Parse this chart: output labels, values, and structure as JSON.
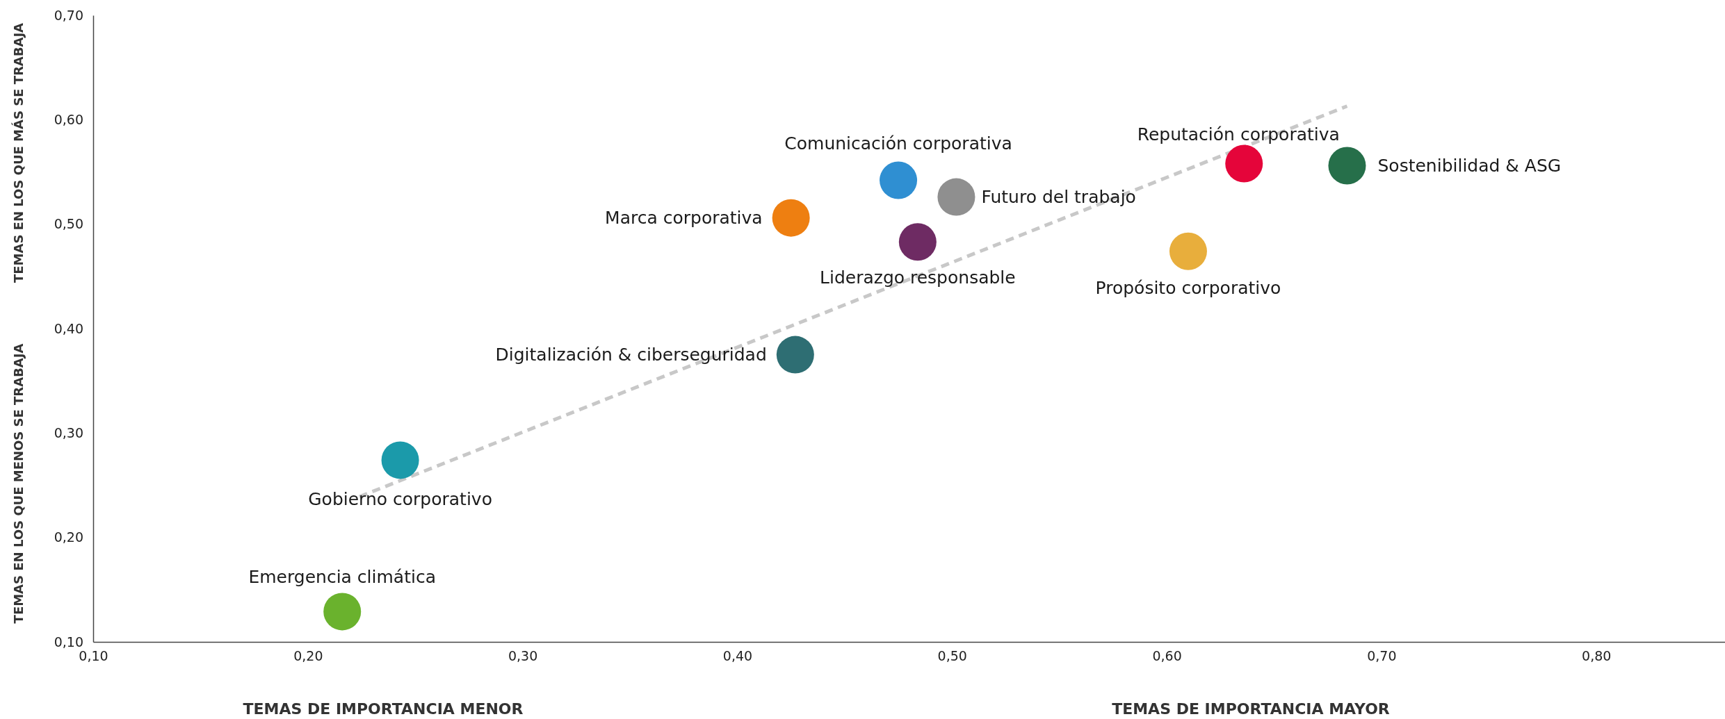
{
  "chart_data": {
    "type": "scatter",
    "xlim": [
      0.1,
      0.86
    ],
    "ylim": [
      0.1,
      0.7
    ],
    "xticks": [
      {
        "value": 0.1,
        "label": "0,10"
      },
      {
        "value": 0.2,
        "label": "0,20"
      },
      {
        "value": 0.3,
        "label": "0,30"
      },
      {
        "value": 0.4,
        "label": "0,40"
      },
      {
        "value": 0.5,
        "label": "0,50"
      },
      {
        "value": 0.6,
        "label": "0,60"
      },
      {
        "value": 0.7,
        "label": "0,70"
      },
      {
        "value": 0.8,
        "label": "0,80"
      }
    ],
    "yticks": [
      {
        "value": 0.1,
        "label": "0,10"
      },
      {
        "value": 0.2,
        "label": "0,20"
      },
      {
        "value": 0.3,
        "label": "0,30"
      },
      {
        "value": 0.4,
        "label": "0,40"
      },
      {
        "value": 0.5,
        "label": "0,50"
      },
      {
        "value": 0.6,
        "label": "0,60"
      },
      {
        "value": 0.7,
        "label": "0,70"
      }
    ],
    "marker": "circle",
    "grid": false,
    "annotations": [
      "TEMAS DE IMPORTANCIA MENOR",
      "TEMAS DE IMPORTANCIA MAYOR",
      "TEMAS EN LOS QUE MENOS SE TRABAJA",
      "TEMAS EN LOS QUE MÁS SE TRABAJA"
    ],
    "series": [
      {
        "type": "line",
        "color": "#c8c8c8",
        "line_style": "dashed",
        "marker": "none",
        "x": [
          0.224,
          0.684
        ],
        "values": [
          0.239,
          0.613
        ]
      },
      {
        "name": "Emergencia climática",
        "color": "#6ab22d",
        "x": [
          0.216
        ],
        "values": [
          0.129
        ]
      },
      {
        "name": "Gobierno corporativo",
        "color": "#1b9aaa",
        "x": [
          0.243
        ],
        "values": [
          0.274
        ]
      },
      {
        "name": "Digitalización & ciberseguridad",
        "color": "#2e6e73",
        "x": [
          0.427
        ],
        "values": [
          0.375
        ]
      },
      {
        "name": "Marca corporativa",
        "color": "#ee7f11",
        "x": [
          0.425
        ],
        "values": [
          0.506
        ]
      },
      {
        "name": "Comunicación corporativa",
        "color": "#2f8fd2",
        "x": [
          0.475
        ],
        "values": [
          0.542
        ]
      },
      {
        "name": "Futuro del trabajo",
        "color": "#8f8f8f",
        "x": [
          0.502
        ],
        "values": [
          0.526
        ]
      },
      {
        "name": "Liderazgo responsable",
        "color": "#6e2b63",
        "x": [
          0.484
        ],
        "values": [
          0.483
        ]
      },
      {
        "name": "Propósito corporativo",
        "color": "#e8ae3c",
        "x": [
          0.61
        ],
        "values": [
          0.474
        ]
      },
      {
        "name": "Reputación corporativa",
        "color": "#e5053a",
        "x": [
          0.636
        ],
        "values": [
          0.558
        ]
      },
      {
        "name": "Sostenibilidad & ASG",
        "color": "#266f4a",
        "x": [
          0.684
        ],
        "values": [
          0.556
        ]
      }
    ]
  }
}
